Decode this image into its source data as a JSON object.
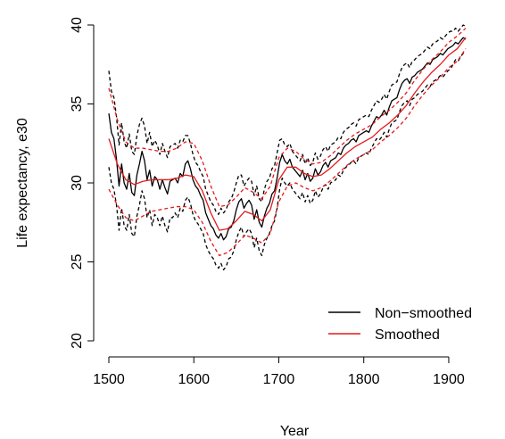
{
  "chart_data": {
    "type": "line",
    "title": "",
    "xlabel": "Year",
    "ylabel": "Life expectancy, e30",
    "xlim": [
      1500,
      1920
    ],
    "ylim": [
      20,
      40
    ],
    "x_ticks": [
      1500,
      1600,
      1700,
      1800,
      1900
    ],
    "y_ticks": [
      20,
      25,
      30,
      35,
      40
    ],
    "grid": false,
    "legend_position": "bottom-right",
    "colors": {
      "non_smoothed": "#000000",
      "smoothed": "#e41a1c"
    },
    "series": [
      {
        "name": "Non−smoothed",
        "style": "solid",
        "x": [
          1500,
          1503,
          1506,
          1509,
          1512,
          1515,
          1518,
          1521,
          1524,
          1527,
          1530,
          1533,
          1536,
          1539,
          1542,
          1545,
          1548,
          1551,
          1554,
          1557,
          1560,
          1563,
          1566,
          1569,
          1572,
          1575,
          1578,
          1581,
          1584,
          1587,
          1590,
          1593,
          1596,
          1599,
          1602,
          1605,
          1608,
          1611,
          1614,
          1617,
          1620,
          1623,
          1626,
          1629,
          1632,
          1635,
          1638,
          1641,
          1644,
          1647,
          1650,
          1653,
          1656,
          1659,
          1662,
          1665,
          1668,
          1671,
          1674,
          1677,
          1680,
          1683,
          1686,
          1689,
          1692,
          1695,
          1698,
          1701,
          1704,
          1707,
          1710,
          1713,
          1716,
          1719,
          1722,
          1725,
          1728,
          1731,
          1734,
          1737,
          1740,
          1743,
          1746,
          1749,
          1752,
          1755,
          1758,
          1761,
          1764,
          1767,
          1770,
          1773,
          1776,
          1779,
          1782,
          1785,
          1788,
          1791,
          1794,
          1797,
          1800,
          1803,
          1806,
          1809,
          1812,
          1815,
          1818,
          1821,
          1824,
          1827,
          1830,
          1833,
          1836,
          1839,
          1842,
          1845,
          1848,
          1851,
          1854,
          1857,
          1860,
          1863,
          1866,
          1869,
          1872,
          1875,
          1878,
          1881,
          1884,
          1887,
          1890,
          1893,
          1896,
          1899,
          1902,
          1905,
          1908,
          1911,
          1914,
          1917,
          1920
        ],
        "y": [
          34.4,
          33.2,
          32.8,
          31.5,
          29.8,
          31.2,
          30.0,
          29.6,
          30.6,
          29.4,
          29.2,
          30.5,
          31.2,
          32.0,
          31.4,
          30.2,
          30.8,
          29.8,
          30.4,
          30.2,
          29.6,
          30.2,
          29.7,
          29.3,
          30.1,
          30.2,
          30.3,
          30.0,
          30.6,
          30.4,
          31.2,
          31.4,
          30.9,
          30.2,
          29.8,
          29.6,
          29.2,
          28.9,
          28.1,
          27.7,
          27.3,
          27.1,
          26.7,
          26.5,
          26.8,
          26.4,
          26.6,
          27.1,
          27.2,
          27.6,
          28.3,
          28.8,
          29.0,
          28.4,
          28.7,
          28.9,
          28.6,
          27.7,
          28.3,
          27.5,
          27.2,
          27.9,
          28.4,
          28.7,
          29.3,
          29.5,
          30.3,
          31.3,
          31.8,
          31.4,
          31.2,
          31.5,
          31.0,
          30.8,
          30.6,
          30.4,
          30.8,
          30.2,
          30.6,
          30.1,
          30.3,
          30.9,
          30.5,
          30.7,
          31.1,
          31.3,
          31.0,
          31.4,
          31.5,
          31.6,
          31.9,
          31.8,
          32.2,
          32.4,
          32.5,
          32.7,
          32.8,
          32.6,
          33.0,
          33.1,
          33.2,
          33.3,
          33.2,
          33.6,
          33.9,
          34.2,
          34.1,
          34.3,
          34.6,
          34.3,
          34.8,
          35.2,
          35.3,
          35.4,
          35.9,
          36.3,
          36.5,
          36.6,
          36.3,
          36.7,
          36.8,
          37.0,
          37.1,
          37.2,
          37.4,
          37.6,
          37.5,
          37.8,
          37.9,
          38.0,
          38.2,
          38.1,
          38.3,
          38.5,
          38.6,
          38.7,
          38.9,
          38.8,
          39.0,
          39.2,
          39.1
        ]
      },
      {
        "name": "Smoothed",
        "style": "solid",
        "x": [
          1500,
          1510,
          1520,
          1530,
          1540,
          1550,
          1560,
          1570,
          1580,
          1590,
          1600,
          1610,
          1620,
          1630,
          1640,
          1650,
          1660,
          1670,
          1680,
          1690,
          1700,
          1710,
          1720,
          1730,
          1740,
          1750,
          1760,
          1770,
          1780,
          1790,
          1800,
          1810,
          1820,
          1830,
          1840,
          1850,
          1860,
          1870,
          1880,
          1890,
          1900,
          1910,
          1920
        ],
        "y": [
          32.8,
          31.2,
          30.2,
          29.9,
          30.1,
          30.2,
          30.2,
          30.2,
          30.3,
          30.5,
          30.4,
          29.5,
          28.1,
          27.0,
          27.1,
          27.6,
          28.2,
          28.0,
          27.6,
          28.3,
          30.2,
          31.0,
          31.0,
          30.6,
          30.4,
          30.5,
          30.9,
          31.4,
          31.9,
          32.3,
          32.6,
          32.9,
          33.4,
          33.8,
          34.3,
          34.9,
          35.7,
          36.4,
          37.0,
          37.5,
          38.1,
          38.5,
          39.2
        ]
      },
      {
        "name": "",
        "style": "dashed",
        "color_key": "non_smoothed",
        "x": [
          1500,
          1503,
          1506,
          1509,
          1512,
          1515,
          1518,
          1521,
          1524,
          1527,
          1530,
          1533,
          1536,
          1539,
          1542,
          1545,
          1548,
          1551,
          1554,
          1557,
          1560,
          1563,
          1566,
          1569,
          1572,
          1575,
          1578,
          1581,
          1584,
          1587,
          1590,
          1593,
          1596,
          1599,
          1602,
          1605,
          1608,
          1611,
          1614,
          1617,
          1620,
          1623,
          1626,
          1629,
          1632,
          1635,
          1638,
          1641,
          1644,
          1647,
          1650,
          1653,
          1656,
          1659,
          1662,
          1665,
          1668,
          1671,
          1674,
          1677,
          1680,
          1683,
          1686,
          1689,
          1692,
          1695,
          1698,
          1701,
          1704,
          1707,
          1710,
          1713,
          1716,
          1719,
          1722,
          1725,
          1728,
          1731,
          1734,
          1737,
          1740,
          1743,
          1746,
          1749,
          1752,
          1755,
          1758,
          1761,
          1764,
          1767,
          1770,
          1773,
          1776,
          1779,
          1782,
          1785,
          1788,
          1791,
          1794,
          1797,
          1800,
          1803,
          1806,
          1809,
          1812,
          1815,
          1818,
          1821,
          1824,
          1827,
          1830,
          1833,
          1836,
          1839,
          1842,
          1845,
          1848,
          1851,
          1854,
          1857,
          1860,
          1863,
          1866,
          1869,
          1872,
          1875,
          1878,
          1881,
          1884,
          1887,
          1890,
          1893,
          1896,
          1899,
          1902,
          1905,
          1908,
          1911,
          1914,
          1917,
          1920
        ],
        "y": [
          37.1,
          35.8,
          35.4,
          34.2,
          32.4,
          33.8,
          32.6,
          32.2,
          33.1,
          32.0,
          31.8,
          33.0,
          33.7,
          34.1,
          33.6,
          32.5,
          33.2,
          32.3,
          32.7,
          32.4,
          31.8,
          32.5,
          32.0,
          31.6,
          32.3,
          32.4,
          32.5,
          32.2,
          32.7,
          32.6,
          33.0,
          33.0,
          32.5,
          31.8,
          31.3,
          31.1,
          30.7,
          30.4,
          29.6,
          29.2,
          28.8,
          28.6,
          28.2,
          28.0,
          28.4,
          28.1,
          28.3,
          28.8,
          29.0,
          29.4,
          30.0,
          30.5,
          30.5,
          29.8,
          30.1,
          30.3,
          30.1,
          29.2,
          29.8,
          29.0,
          28.8,
          29.6,
          30.1,
          30.3,
          30.9,
          31.1,
          31.9,
          32.7,
          32.8,
          32.4,
          32.3,
          32.5,
          32.0,
          31.8,
          31.6,
          31.4,
          31.8,
          31.2,
          31.6,
          31.1,
          31.3,
          31.9,
          31.5,
          31.7,
          32.1,
          32.3,
          32.0,
          32.4,
          32.5,
          32.6,
          32.9,
          32.8,
          33.2,
          33.4,
          33.5,
          33.7,
          33.8,
          33.6,
          34.0,
          34.1,
          34.2,
          34.3,
          34.2,
          34.6,
          34.9,
          35.2,
          35.1,
          35.3,
          35.6,
          35.3,
          35.8,
          36.2,
          36.3,
          36.4,
          36.9,
          37.3,
          37.5,
          37.6,
          37.3,
          37.7,
          37.8,
          38.0,
          38.1,
          38.2,
          38.4,
          38.6,
          38.5,
          38.8,
          38.9,
          39.0,
          39.2,
          39.1,
          39.3,
          39.5,
          39.6,
          39.6,
          39.8,
          39.6,
          39.8,
          40.0,
          39.9
        ]
      },
      {
        "name": "",
        "style": "dashed",
        "color_key": "non_smoothed",
        "x": [
          1500,
          1503,
          1506,
          1509,
          1512,
          1515,
          1518,
          1521,
          1524,
          1527,
          1530,
          1533,
          1536,
          1539,
          1542,
          1545,
          1548,
          1551,
          1554,
          1557,
          1560,
          1563,
          1566,
          1569,
          1572,
          1575,
          1578,
          1581,
          1584,
          1587,
          1590,
          1593,
          1596,
          1599,
          1602,
          1605,
          1608,
          1611,
          1614,
          1617,
          1620,
          1623,
          1626,
          1629,
          1632,
          1635,
          1638,
          1641,
          1644,
          1647,
          1650,
          1653,
          1656,
          1659,
          1662,
          1665,
          1668,
          1671,
          1674,
          1677,
          1680,
          1683,
          1686,
          1689,
          1692,
          1695,
          1698,
          1701,
          1704,
          1707,
          1710,
          1713,
          1716,
          1719,
          1722,
          1725,
          1728,
          1731,
          1734,
          1737,
          1740,
          1743,
          1746,
          1749,
          1752,
          1755,
          1758,
          1761,
          1764,
          1767,
          1770,
          1773,
          1776,
          1779,
          1782,
          1785,
          1788,
          1791,
          1794,
          1797,
          1800,
          1803,
          1806,
          1809,
          1812,
          1815,
          1818,
          1821,
          1824,
          1827,
          1830,
          1833,
          1836,
          1839,
          1842,
          1845,
          1848,
          1851,
          1854,
          1857,
          1860,
          1863,
          1866,
          1869,
          1872,
          1875,
          1878,
          1881,
          1884,
          1887,
          1890,
          1893,
          1896,
          1899,
          1902,
          1905,
          1908,
          1911,
          1914,
          1917,
          1920
        ],
        "y": [
          31.0,
          30.0,
          29.6,
          28.6,
          27.0,
          28.4,
          27.3,
          27.0,
          28.0,
          26.8,
          26.6,
          27.9,
          28.6,
          29.5,
          29.0,
          27.8,
          28.3,
          27.3,
          28.0,
          27.8,
          27.3,
          27.9,
          27.3,
          26.9,
          27.8,
          27.8,
          28.1,
          27.8,
          28.4,
          28.2,
          28.9,
          29.1,
          28.7,
          28.0,
          27.6,
          27.4,
          27.1,
          26.8,
          26.1,
          25.7,
          25.4,
          25.2,
          24.8,
          24.6,
          24.9,
          24.5,
          24.7,
          25.2,
          25.3,
          25.7,
          26.4,
          26.9,
          27.2,
          26.6,
          26.9,
          27.1,
          26.8,
          25.9,
          26.5,
          25.7,
          25.4,
          26.1,
          26.5,
          26.8,
          27.3,
          27.6,
          28.4,
          29.6,
          30.3,
          30.0,
          29.8,
          30.0,
          29.6,
          29.4,
          29.2,
          29.0,
          29.4,
          28.8,
          29.2,
          28.7,
          28.9,
          29.5,
          29.1,
          29.3,
          29.7,
          29.9,
          29.6,
          30.0,
          30.1,
          30.2,
          30.5,
          30.4,
          30.8,
          31.0,
          31.1,
          31.3,
          31.4,
          31.2,
          31.6,
          31.7,
          31.8,
          31.9,
          31.8,
          32.2,
          32.5,
          32.8,
          32.7,
          32.9,
          33.2,
          32.9,
          33.4,
          33.8,
          33.9,
          34.0,
          34.5,
          34.9,
          35.1,
          35.2,
          34.9,
          35.3,
          35.4,
          35.6,
          35.7,
          35.8,
          36.0,
          36.2,
          36.1,
          36.4,
          36.5,
          36.6,
          36.8,
          36.7,
          36.9,
          37.1,
          37.2,
          37.5,
          37.8,
          37.7,
          38.0,
          38.2,
          38.1
        ]
      },
      {
        "name": "",
        "style": "dashed",
        "color_key": "smoothed",
        "x": [
          1500,
          1510,
          1520,
          1530,
          1540,
          1550,
          1560,
          1570,
          1580,
          1590,
          1600,
          1610,
          1620,
          1630,
          1640,
          1650,
          1660,
          1670,
          1680,
          1690,
          1700,
          1710,
          1720,
          1730,
          1740,
          1750,
          1760,
          1770,
          1780,
          1790,
          1800,
          1810,
          1820,
          1830,
          1840,
          1850,
          1860,
          1870,
          1880,
          1890,
          1900,
          1910,
          1920
        ],
        "y": [
          36.0,
          34.0,
          32.6,
          32.2,
          32.2,
          32.1,
          32.0,
          32.0,
          32.2,
          32.6,
          32.5,
          31.4,
          29.8,
          28.5,
          28.6,
          29.1,
          29.7,
          29.4,
          29.0,
          29.8,
          31.6,
          32.2,
          32.0,
          31.5,
          31.2,
          31.3,
          31.7,
          32.2,
          32.7,
          33.1,
          33.4,
          33.7,
          34.2,
          34.6,
          35.1,
          35.7,
          36.5,
          37.2,
          37.8,
          38.3,
          38.9,
          39.3,
          39.8
        ]
      },
      {
        "name": "",
        "style": "dashed",
        "color_key": "smoothed",
        "x": [
          1500,
          1510,
          1520,
          1530,
          1540,
          1550,
          1560,
          1570,
          1580,
          1590,
          1600,
          1610,
          1620,
          1630,
          1640,
          1650,
          1660,
          1670,
          1680,
          1690,
          1700,
          1710,
          1720,
          1730,
          1740,
          1750,
          1760,
          1770,
          1780,
          1790,
          1800,
          1810,
          1820,
          1830,
          1840,
          1850,
          1860,
          1870,
          1880,
          1890,
          1900,
          1910,
          1920
        ],
        "y": [
          29.6,
          28.6,
          27.8,
          27.6,
          27.9,
          28.2,
          28.3,
          28.4,
          28.5,
          28.5,
          28.3,
          27.5,
          26.3,
          25.4,
          25.6,
          26.1,
          26.7,
          26.5,
          26.2,
          26.8,
          28.8,
          29.8,
          30.0,
          29.7,
          29.5,
          29.7,
          30.1,
          30.6,
          31.1,
          31.5,
          31.8,
          32.1,
          32.6,
          33.0,
          33.5,
          34.1,
          34.9,
          35.6,
          36.2,
          36.7,
          37.3,
          37.7,
          38.5
        ]
      }
    ],
    "legend": [
      {
        "label": "Non−smoothed",
        "color_key": "non_smoothed"
      },
      {
        "label": "Smoothed",
        "color_key": "smoothed"
      }
    ]
  }
}
